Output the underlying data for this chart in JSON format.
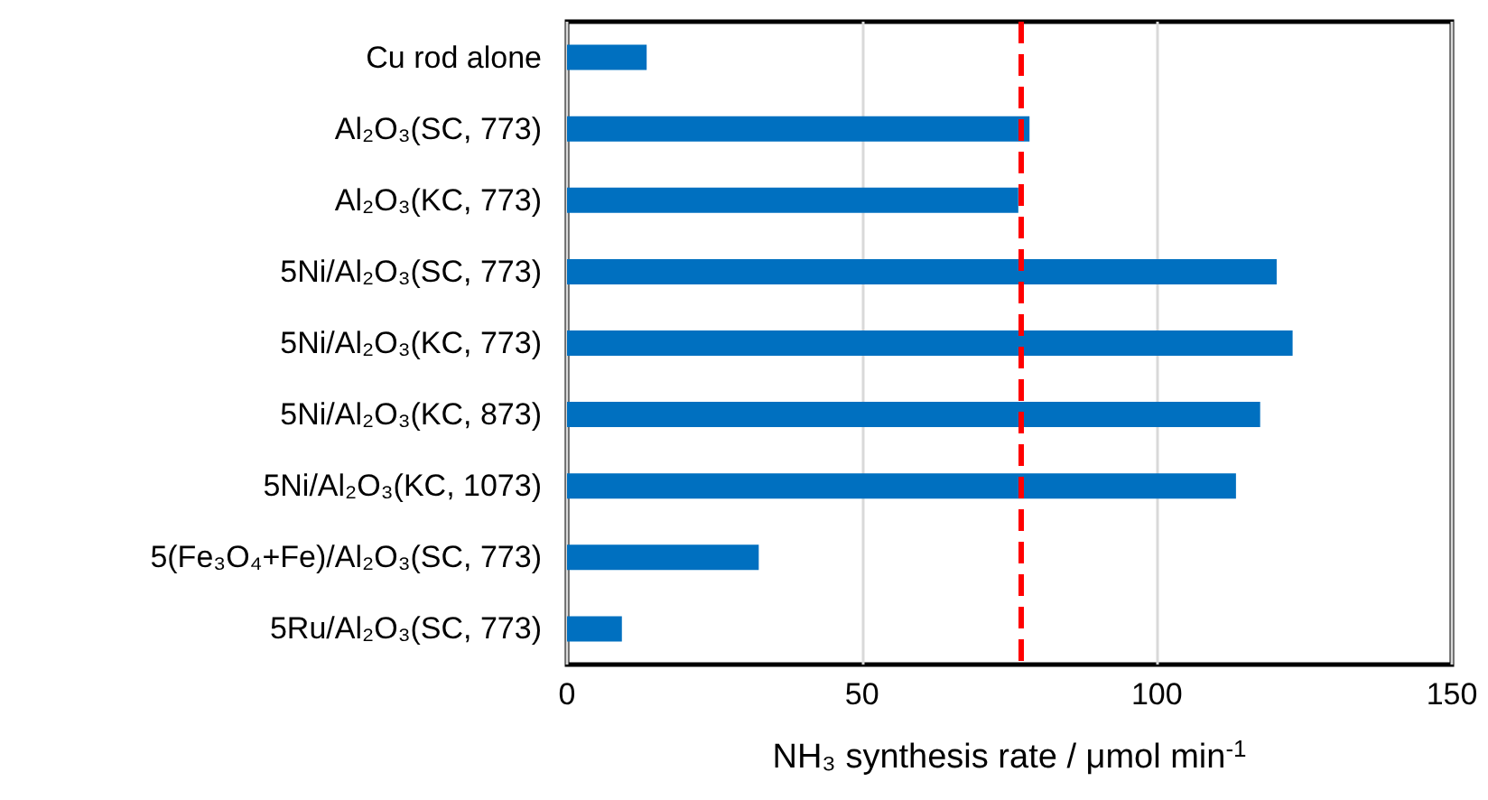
{
  "chart_data": {
    "type": "bar",
    "orientation": "horizontal",
    "categories": [
      "Cu rod alone",
      "Al₂O₃(SC, 773)",
      "Al₂O₃(KC, 773)",
      "5Ni/Al₂O₃(SC, 773)",
      "5Ni/Al₂O₃(KC, 773)",
      "5Ni/Al₂O₃(KC, 873)",
      "5Ni/Al₂O₃(KC, 1073)",
      "5(Fe₃O₄+Fe)/Al₂O₃(SC, 773)",
      "5Ru/Al₂O₃(SC, 773)"
    ],
    "values": [
      13.5,
      78.4,
      76.5,
      120.3,
      123,
      117.5,
      113.4,
      32.5,
      9.3
    ],
    "color": "#0070c0",
    "xlabel": "NH₃ synthesis rate / μmol min$^{-1}$",
    "xlim": [
      0,
      150
    ],
    "xticks": [
      0,
      50,
      100,
      150
    ],
    "grid": "x",
    "ref_lines": [
      {
        "axis": "x",
        "value": 77,
        "color": "#ff0000",
        "line_style": "dashed"
      }
    ]
  }
}
